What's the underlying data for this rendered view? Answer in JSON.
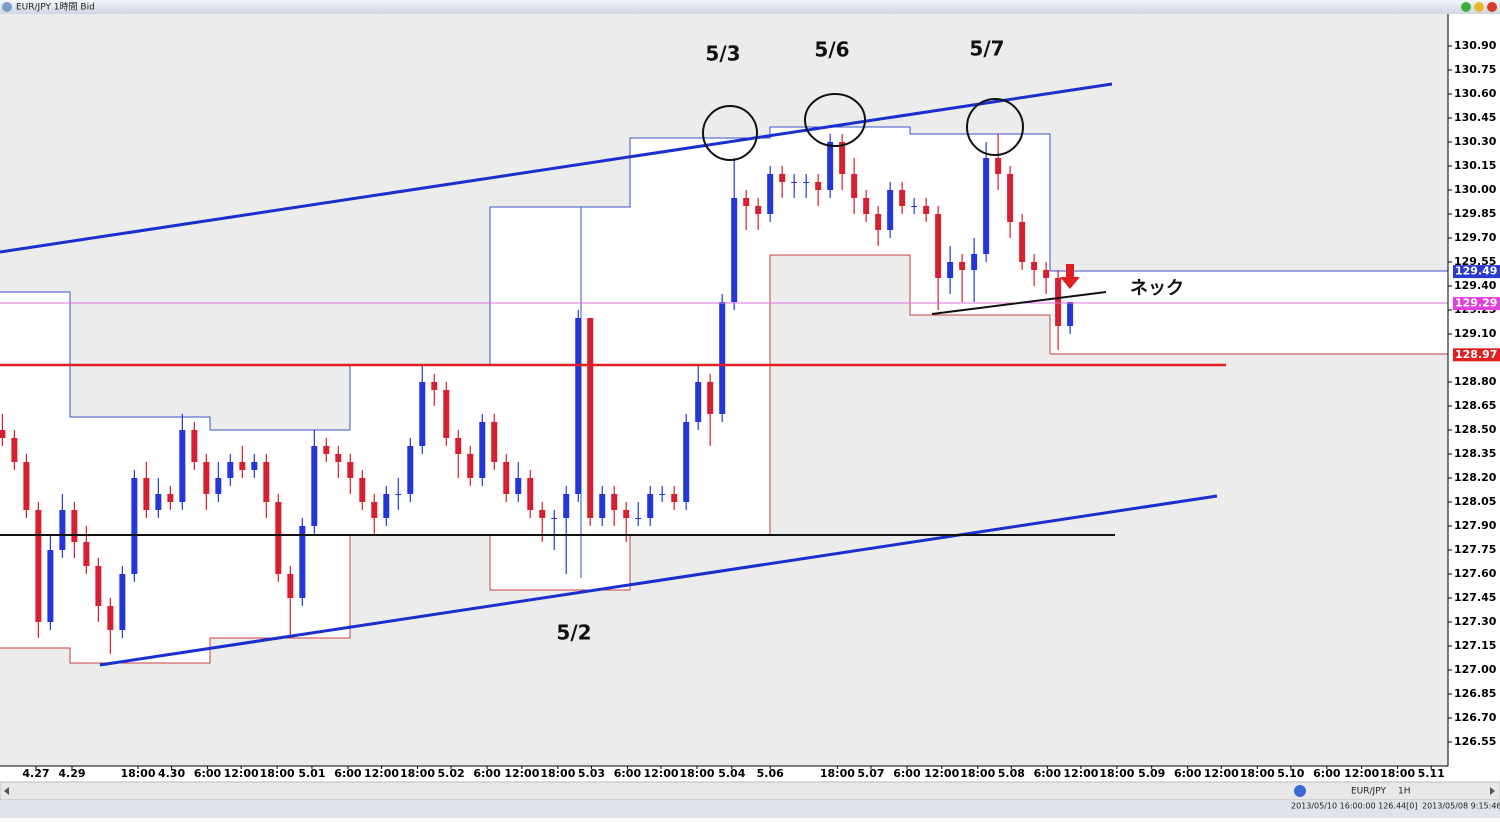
{
  "chart_data": {
    "type": "candlestick",
    "title": "EUR/JPY 1時間 Bid",
    "annotations": [
      "5/3",
      "5/6",
      "5/7",
      "5/2",
      "ネック"
    ],
    "up_color": "#2436d8",
    "down_color": "#d42030",
    "candles": {
      "open": [
        128.5,
        128.45,
        128.3,
        128.0,
        127.3,
        127.75,
        128.0,
        127.8,
        127.65,
        127.4,
        127.25,
        127.6,
        128.2,
        128.0,
        128.1,
        128.05,
        128.5,
        128.3,
        128.1,
        128.2,
        128.3,
        128.25,
        128.3,
        128.05,
        127.6,
        127.45,
        127.9,
        128.4,
        128.35,
        128.3,
        128.2,
        128.05,
        127.95,
        128.1,
        128.1,
        128.4,
        128.8,
        128.75,
        128.45,
        128.35,
        128.2,
        128.55,
        128.3,
        128.1,
        128.2,
        128.0,
        127.95,
        127.95,
        128.1,
        129.2,
        127.95,
        128.1,
        128.0,
        127.95,
        127.95,
        128.1,
        128.1,
        128.05,
        128.55,
        128.8,
        128.6,
        129.3,
        129.95,
        129.9,
        129.85,
        130.1,
        130.05,
        130.05,
        130.05,
        130.0,
        130.3,
        130.1,
        129.95,
        129.85,
        129.75,
        130.0,
        129.9,
        129.9,
        129.85,
        129.45,
        129.55,
        129.5,
        129.6,
        130.2,
        130.1,
        129.8,
        129.55,
        129.5,
        129.45,
        129.15
      ],
      "high": [
        128.6,
        128.5,
        128.35,
        128.05,
        127.85,
        128.1,
        128.05,
        127.9,
        127.7,
        127.45,
        127.65,
        128.25,
        128.3,
        128.2,
        128.15,
        128.6,
        128.55,
        128.35,
        128.3,
        128.35,
        128.4,
        128.35,
        128.35,
        128.1,
        127.65,
        127.95,
        128.5,
        128.45,
        128.4,
        128.35,
        128.25,
        128.1,
        128.15,
        128.2,
        128.45,
        128.9,
        128.85,
        128.8,
        128.5,
        128.4,
        128.6,
        128.6,
        128.35,
        128.3,
        128.25,
        128.05,
        128.0,
        128.15,
        129.25,
        129.2,
        128.15,
        128.15,
        128.05,
        128.05,
        128.15,
        128.15,
        128.15,
        128.6,
        128.9,
        128.85,
        129.35,
        130.2,
        130.0,
        129.95,
        130.15,
        130.15,
        130.1,
        130.1,
        130.1,
        130.35,
        130.35,
        130.2,
        130.0,
        129.9,
        130.05,
        130.05,
        129.95,
        129.95,
        129.9,
        129.65,
        129.6,
        129.7,
        130.3,
        130.35,
        130.15,
        129.85,
        129.6,
        129.55,
        129.5,
        129.3
      ],
      "low": [
        128.4,
        128.25,
        127.95,
        127.2,
        127.25,
        127.7,
        127.7,
        127.6,
        127.3,
        127.1,
        127.2,
        127.55,
        127.95,
        127.95,
        128.0,
        128.0,
        128.25,
        128.0,
        128.05,
        128.15,
        128.2,
        128.2,
        127.95,
        127.55,
        127.2,
        127.4,
        127.85,
        128.3,
        128.2,
        128.1,
        128.0,
        127.85,
        127.9,
        128.0,
        128.05,
        128.35,
        128.65,
        128.4,
        128.2,
        128.15,
        128.15,
        128.25,
        128.05,
        128.05,
        127.95,
        127.8,
        127.75,
        127.6,
        128.05,
        127.9,
        127.9,
        127.9,
        127.8,
        127.9,
        127.9,
        128.05,
        128.0,
        128.0,
        128.5,
        128.4,
        128.55,
        129.25,
        129.75,
        129.75,
        129.8,
        129.95,
        129.95,
        129.95,
        129.9,
        129.95,
        130.0,
        129.85,
        129.8,
        129.65,
        129.7,
        129.85,
        129.85,
        129.8,
        129.25,
        129.35,
        129.3,
        129.3,
        129.55,
        130.0,
        129.7,
        129.5,
        129.4,
        129.35,
        129.0,
        129.1
      ],
      "close": [
        128.45,
        128.3,
        128.0,
        127.3,
        127.75,
        128.0,
        127.8,
        127.65,
        127.4,
        127.25,
        127.6,
        128.2,
        128.0,
        128.1,
        128.05,
        128.5,
        128.3,
        128.1,
        128.2,
        128.3,
        128.25,
        128.3,
        128.05,
        127.6,
        127.45,
        127.9,
        128.4,
        128.35,
        128.3,
        128.2,
        128.05,
        127.95,
        128.1,
        128.1,
        128.4,
        128.8,
        128.75,
        128.45,
        128.35,
        128.2,
        128.55,
        128.3,
        128.1,
        128.2,
        128.0,
        127.95,
        127.95,
        128.1,
        129.2,
        127.95,
        128.1,
        128.0,
        127.95,
        127.95,
        128.1,
        128.1,
        128.05,
        128.55,
        128.8,
        128.6,
        129.3,
        129.95,
        129.9,
        129.85,
        130.1,
        130.05,
        130.05,
        130.05,
        130.0,
        130.3,
        130.1,
        129.95,
        129.85,
        129.75,
        130.0,
        129.9,
        129.9,
        129.85,
        129.45,
        129.55,
        129.5,
        129.6,
        130.2,
        130.1,
        129.8,
        129.55,
        129.5,
        129.45,
        129.15,
        129.3
      ]
    },
    "xlim": [
      -0.2,
      120.5
    ],
    "xticks": [
      {
        "value": 2.8,
        "label": "4.27"
      },
      {
        "value": 5.8,
        "label": "4.29"
      },
      {
        "value": 11.3,
        "label": "18:00"
      },
      {
        "value": 14.1,
        "label": "4.30"
      },
      {
        "value": 17.1,
        "label": "6:00"
      },
      {
        "value": 19.9,
        "label": "12:00"
      },
      {
        "value": 22.9,
        "label": "18:00"
      },
      {
        "value": 25.8,
        "label": "5.01"
      },
      {
        "value": 28.8,
        "label": "6:00"
      },
      {
        "value": 31.6,
        "label": "12:00"
      },
      {
        "value": 34.6,
        "label": "18:00"
      },
      {
        "value": 37.4,
        "label": "5.02"
      },
      {
        "value": 40.4,
        "label": "6:00"
      },
      {
        "value": 43.3,
        "label": "12:00"
      },
      {
        "value": 46.3,
        "label": "18:00"
      },
      {
        "value": 49.1,
        "label": "5.03"
      },
      {
        "value": 52.1,
        "label": "6:00"
      },
      {
        "value": 54.9,
        "label": "12:00"
      },
      {
        "value": 57.9,
        "label": "18:00"
      },
      {
        "value": 60.8,
        "label": "5.04"
      },
      {
        "value": 64.0,
        "label": "5.06"
      },
      {
        "value": 69.6,
        "label": "18:00"
      },
      {
        "value": 72.4,
        "label": "5.07"
      },
      {
        "value": 75.4,
        "label": "6:00"
      },
      {
        "value": 78.3,
        "label": "12:00"
      },
      {
        "value": 81.3,
        "label": "18:00"
      },
      {
        "value": 84.1,
        "label": "5.08"
      },
      {
        "value": 87.1,
        "label": "6:00"
      },
      {
        "value": 89.9,
        "label": "12:00"
      },
      {
        "value": 92.9,
        "label": "18:00"
      },
      {
        "value": 95.8,
        "label": "5.09"
      },
      {
        "value": 98.8,
        "label": "6:00"
      },
      {
        "value": 101.6,
        "label": "12:00"
      },
      {
        "value": 104.6,
        "label": "18:00"
      },
      {
        "value": 107.4,
        "label": "5.10"
      },
      {
        "value": 110.4,
        "label": "6:00"
      },
      {
        "value": 113.3,
        "label": "12:00"
      },
      {
        "value": 116.3,
        "label": "18:00"
      },
      {
        "value": 119.1,
        "label": "5.11"
      }
    ],
    "ylim": [
      126.4,
      131.1
    ],
    "yticks": [
      {
        "value": 130.9,
        "label": "130.90"
      },
      130.75,
      {
        "value": 130.6,
        "label": "130.60"
      },
      130.45,
      {
        "value": 130.3,
        "label": "130.30"
      },
      130.15,
      {
        "value": 130.0,
        "label": "130.00"
      },
      129.85,
      {
        "value": 129.7,
        "label": "129.70"
      },
      129.55,
      {
        "value": 129.4,
        "label": "129.40"
      },
      129.25,
      {
        "value": 129.1,
        "label": "129.10"
      },
      {
        "value": 128.8,
        "label": "128.80"
      },
      128.65,
      {
        "value": 128.5,
        "label": "128.50"
      },
      128.35,
      {
        "value": 128.2,
        "label": "128.20"
      },
      128.05,
      {
        "value": 127.9,
        "label": "127.90"
      },
      127.75,
      {
        "value": 127.6,
        "label": "127.60"
      },
      127.45,
      {
        "value": 127.3,
        "label": "127.30"
      },
      127.15,
      {
        "value": 127.0,
        "label": "127.00"
      },
      126.85,
      {
        "value": 126.7,
        "label": "126.70"
      },
      126.55
    ],
    "price_tags": {
      "values": [
        129.49,
        129.29,
        128.97
      ],
      "colors": [
        "#2a3ad0",
        "#e040e0",
        "#e02020"
      ]
    },
    "grid": false
  },
  "status": {
    "symbol": "EUR/JPY",
    "timeframe": "1H",
    "cursor": "2013/05/10 16:00:00  126.44[0]",
    "clock": "2013/05/08 9:15:46"
  }
}
